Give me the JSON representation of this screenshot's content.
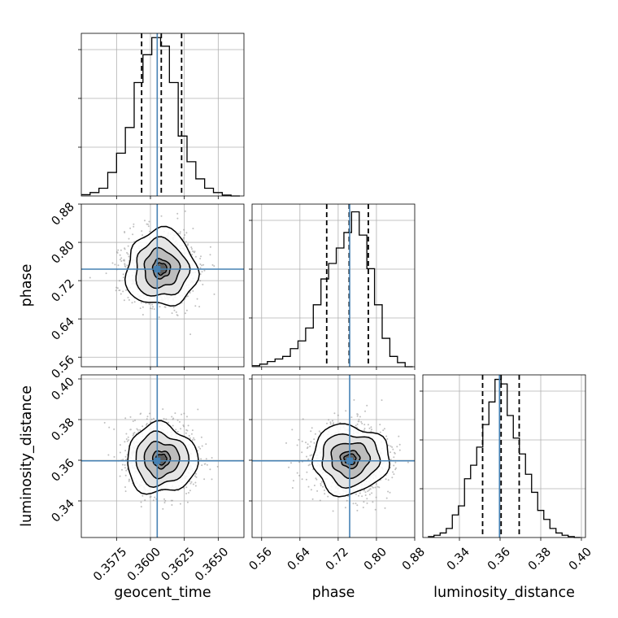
{
  "chart_data": {
    "type": "corner",
    "grid": true,
    "colors": {
      "truth": "#4682b4",
      "hist": "#000000",
      "quantile": "#000000",
      "scatter": "#7f7f7f"
    },
    "parameters": [
      {
        "name": "geocent_time",
        "label": "geocent_time",
        "range": [
          0.3549,
          0.3669
        ],
        "ticks": [
          0.3575,
          0.36,
          0.3625,
          0.365
        ],
        "tick_labels": [
          "0.3575",
          "0.3600",
          "0.3625",
          "0.3650"
        ],
        "truth": 0.3605,
        "mean": 0.3608,
        "std": 0.0013,
        "quantiles": [
          0.35935,
          0.3608,
          0.3623
        ]
      },
      {
        "name": "phase",
        "label": "phase",
        "range": [
          0.54,
          0.88
        ],
        "ticks": [
          0.56,
          0.64,
          0.72,
          0.8,
          0.88
        ],
        "tick_labels": [
          "0.56",
          "0.64",
          "0.72",
          "0.80",
          "0.88"
        ],
        "truth": 0.744,
        "mean": 0.745,
        "std": 0.04,
        "quantiles": [
          0.696,
          0.743,
          0.783
        ]
      },
      {
        "name": "luminosity_distance",
        "label": "luminosity_distance",
        "range": [
          0.322,
          0.402
        ],
        "ticks": [
          0.34,
          0.36,
          0.38,
          0.4
        ],
        "tick_labels": [
          "0.34",
          "0.36",
          "0.38",
          "0.40"
        ],
        "truth": 0.3597,
        "mean": 0.3605,
        "std": 0.0085,
        "quantiles": [
          0.3514,
          0.3605,
          0.3694
        ]
      }
    ],
    "diagonal": [
      {
        "param": "geocent_time",
        "bins": [
          0.3549,
          0.35555,
          0.3562,
          0.35685,
          0.3575,
          0.35815,
          0.3588,
          0.35945,
          0.3601,
          0.36075,
          0.3614,
          0.36205,
          0.3627,
          0.36335,
          0.364,
          0.36465,
          0.3653,
          0.36595
        ],
        "counts": [
          3,
          8,
          18,
          55,
          100,
          160,
          265,
          330,
          370,
          350,
          265,
          140,
          80,
          40,
          18,
          8,
          2,
          0
        ],
        "ylim": [
          0,
          380
        ]
      },
      {
        "param": "phase",
        "bins": [
          0.54,
          0.556,
          0.572,
          0.588,
          0.604,
          0.62,
          0.636,
          0.652,
          0.668,
          0.684,
          0.7,
          0.716,
          0.732,
          0.748,
          0.764,
          0.78,
          0.796,
          0.812,
          0.828,
          0.844,
          0.86
        ],
        "counts": [
          2,
          5,
          10,
          15,
          20,
          35,
          50,
          75,
          120,
          170,
          200,
          230,
          260,
          300,
          255,
          190,
          120,
          55,
          20,
          8,
          0
        ],
        "ylim": [
          0,
          315
        ]
      },
      {
        "param": "luminosity_distance",
        "bins": [
          0.3245,
          0.3275,
          0.3305,
          0.3335,
          0.3365,
          0.3395,
          0.3425,
          0.3455,
          0.3485,
          0.3515,
          0.3545,
          0.3575,
          0.3605,
          0.3635,
          0.3665,
          0.3695,
          0.3725,
          0.3755,
          0.3785,
          0.3815,
          0.3845,
          0.3875,
          0.3905,
          0.3935,
          0.3965
        ],
        "counts": [
          2,
          5,
          10,
          20,
          50,
          70,
          130,
          160,
          200,
          250,
          300,
          350,
          340,
          270,
          220,
          185,
          140,
          100,
          60,
          40,
          20,
          10,
          5,
          2,
          0
        ],
        "ylim": [
          0,
          360
        ]
      }
    ],
    "panels_2d": [
      {
        "x": "geocent_time",
        "y": "phase",
        "center": [
          0.3608,
          0.745
        ],
        "spread": [
          0.0013,
          0.04
        ],
        "truth": [
          0.3605,
          0.744
        ],
        "contour_levels_sigma": [
          0.5,
          1.0,
          1.5,
          2.0
        ]
      },
      {
        "x": "geocent_time",
        "y": "luminosity_distance",
        "center": [
          0.3608,
          0.3605
        ],
        "spread": [
          0.0013,
          0.0085
        ],
        "truth": [
          0.3605,
          0.3597
        ],
        "contour_levels_sigma": [
          0.5,
          1.0,
          1.5,
          2.0
        ]
      },
      {
        "x": "phase",
        "y": "luminosity_distance",
        "center": [
          0.745,
          0.3605
        ],
        "spread": [
          0.04,
          0.0085
        ],
        "truth": [
          0.744,
          0.3597
        ],
        "contour_levels_sigma": [
          0.5,
          1.0,
          1.5,
          2.0
        ]
      }
    ]
  }
}
